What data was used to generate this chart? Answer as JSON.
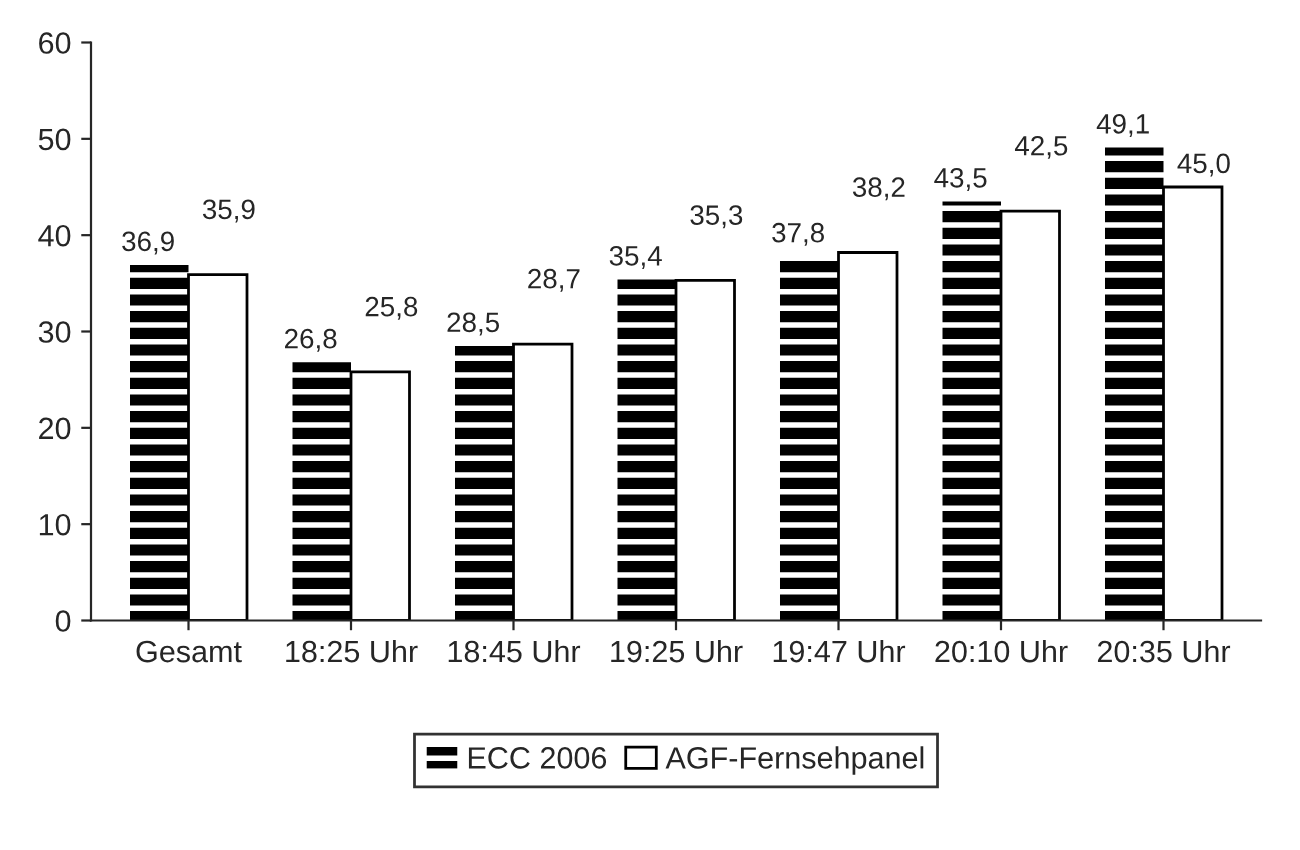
{
  "chart_data": {
    "type": "bar",
    "categories": [
      "Gesamt",
      "18:25 Uhr",
      "18:45 Uhr",
      "19:25 Uhr",
      "19:47 Uhr",
      "20:10 Uhr",
      "20:35 Uhr"
    ],
    "series": [
      {
        "name": "ECC 2006",
        "color": "#000000",
        "values": [
          36.9,
          26.8,
          28.5,
          35.4,
          37.8,
          43.5,
          49.1
        ],
        "value_labels": [
          "36,9",
          "26,8",
          "28,5",
          "35,4",
          "37,8",
          "43,5",
          "49,1"
        ]
      },
      {
        "name": "AGF-Fernsehpanel",
        "color": "#ffffff",
        "values": [
          35.9,
          25.8,
          28.7,
          35.3,
          38.2,
          42.5,
          45.0
        ],
        "value_labels": [
          "35,9",
          "25,8",
          "28,7",
          "35,3",
          "38,2",
          "42,5",
          "45,0"
        ]
      }
    ],
    "ylim": [
      0,
      60
    ],
    "yticks": [
      0,
      10,
      20,
      30,
      40,
      50,
      60
    ],
    "grid": false,
    "legend": "bottom"
  }
}
